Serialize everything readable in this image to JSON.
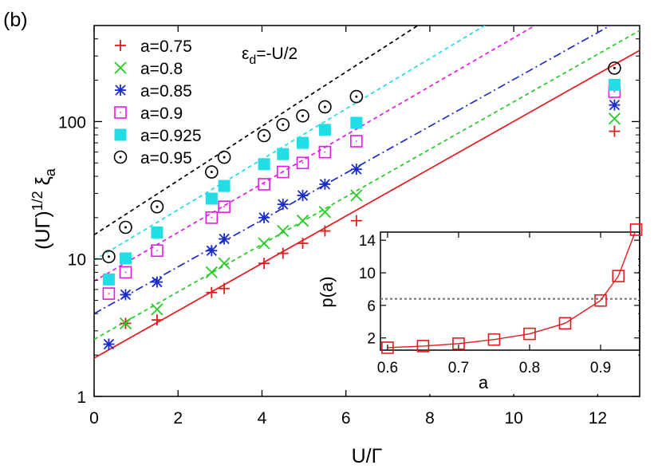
{
  "panel_label": "(b)",
  "chart_data": [
    {
      "type": "scatter",
      "xlabel": "U/Γ",
      "ylabel": "(UΓ)^{1/2} ξ_a",
      "annotation": "εd=-U/2",
      "xlim": [
        0,
        13
      ],
      "ylim": [
        1,
        500
      ],
      "yscale": "log",
      "x_ticks": [
        0,
        2,
        4,
        6,
        8,
        10,
        12
      ],
      "y_ticks": [
        1,
        10,
        100
      ],
      "grid": false,
      "legend_position": "top-left",
      "series": [
        {
          "name": "a=0.75",
          "marker": "plus",
          "color": "#e41a1c",
          "line": "solid",
          "x": [
            0.75,
            1.5,
            2.8,
            3.1,
            4.05,
            4.5,
            4.97,
            5.5,
            6.25,
            12.4
          ],
          "y": [
            3.4,
            3.6,
            5.7,
            6.1,
            9.3,
            11,
            13,
            16,
            19,
            85
          ],
          "fit": {
            "x": [
              0,
              13
            ],
            "y": [
              1.9,
              330
            ]
          }
        },
        {
          "name": "a=0.8",
          "marker": "x",
          "color": "#22cc22",
          "line": "dashed",
          "x": [
            0.75,
            1.5,
            2.8,
            3.1,
            4.05,
            4.5,
            4.97,
            5.5,
            6.25,
            12.4
          ],
          "y": [
            3.4,
            4.3,
            8,
            9.3,
            13,
            16,
            19,
            22,
            29,
            105
          ],
          "fit": {
            "x": [
              0,
              13
            ],
            "y": [
              2.6,
              460
            ]
          }
        },
        {
          "name": "a=0.85",
          "marker": "asterisk",
          "color": "#1a2cc9",
          "line": "dashdot",
          "x": [
            0.35,
            0.75,
            1.5,
            2.8,
            3.1,
            4.05,
            4.5,
            4.97,
            5.5,
            6.25,
            12.4
          ],
          "y": [
            2.4,
            5.5,
            6.8,
            11.5,
            14,
            20,
            25,
            29,
            35,
            45,
            132
          ],
          "fit": {
            "x": [
              0,
              12.4
            ],
            "y": [
              4,
              520
            ]
          }
        },
        {
          "name": "a=0.9",
          "marker": "open-square",
          "color": "#e619e6",
          "line": "dashed",
          "x": [
            0.35,
            0.75,
            1.5,
            2.8,
            3.1,
            4.05,
            4.5,
            4.97,
            5.5,
            6.25,
            12.4
          ],
          "y": [
            5.6,
            8,
            11.5,
            20,
            24,
            35,
            43,
            50,
            60,
            72,
            165
          ],
          "fit": {
            "x": [
              0,
              10.6
            ],
            "y": [
              6.9,
              520
            ]
          }
        },
        {
          "name": "a=0.925",
          "marker": "filled-square",
          "color": "#22dde6",
          "line": "dashed",
          "x": [
            0.35,
            0.75,
            1.5,
            2.8,
            3.1,
            4.05,
            4.5,
            4.97,
            5.5,
            6.25,
            12.4
          ],
          "y": [
            7.1,
            10.1,
            15.6,
            27.5,
            34,
            49,
            58,
            70,
            87,
            98,
            185
          ],
          "fit": {
            "x": [
              0,
              9.4
            ],
            "y": [
              9.8,
              520
            ]
          }
        },
        {
          "name": "a=0.95",
          "marker": "dotted-circle",
          "color": "#000000",
          "line": "dashed",
          "x": [
            0.35,
            0.75,
            1.5,
            2.8,
            3.1,
            4.05,
            4.5,
            4.97,
            5.5,
            6.25,
            12.4
          ],
          "y": [
            10.4,
            17,
            24,
            43,
            55,
            79,
            95,
            110,
            128,
            152,
            245
          ],
          "fit": {
            "x": [
              0,
              7.8
            ],
            "y": [
              15,
              520
            ]
          }
        }
      ]
    },
    {
      "type": "line",
      "xlabel": "a",
      "ylabel": "p(a)",
      "xlim": [
        0.59,
        0.955
      ],
      "ylim": [
        0.5,
        15
      ],
      "x_ticks": [
        0.6,
        0.7,
        0.8,
        0.9
      ],
      "x_tick_labels": [
        "0.6",
        "0.7",
        "0.8",
        "0.9"
      ],
      "y_ticks": [
        2,
        6,
        10,
        14
      ],
      "reference_line": 6.8,
      "grid": false,
      "series": [
        {
          "marker": "open-square",
          "color": "#e41a1c",
          "x": [
            0.6,
            0.65,
            0.7,
            0.75,
            0.8,
            0.85,
            0.9,
            0.925,
            0.95
          ],
          "y": [
            0.8,
            1.0,
            1.3,
            1.8,
            2.5,
            3.8,
            6.6,
            9.6,
            15.3
          ]
        }
      ]
    }
  ]
}
